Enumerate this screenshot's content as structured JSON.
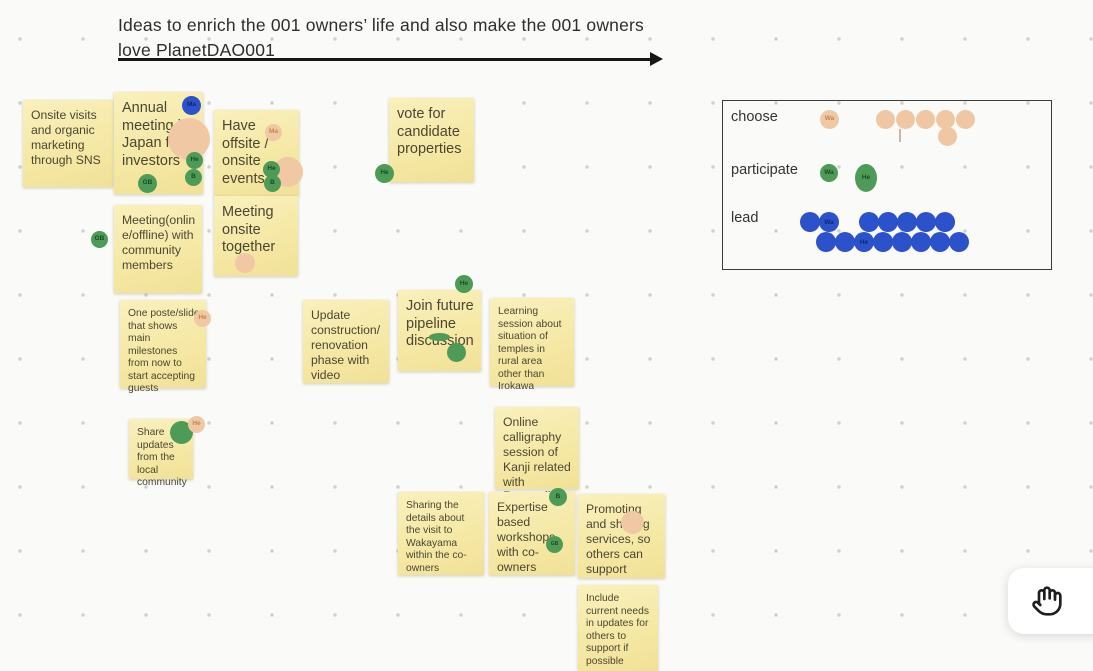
{
  "canvas": {
    "title": "Ideas to enrich the 001 owners’ life and also make the 001 owners love PlanetDAO001"
  },
  "colors": {
    "background": "#fafaf8",
    "sticky": "#f5e8a4",
    "dot_green": "#4d9b57",
    "dot_blue": "#2c52cc",
    "dot_peach": "#f0c8a3"
  },
  "notes": [
    {
      "text": "Onsite visits and organic marketing through SNS"
    },
    {
      "text": "Annual meeting in Japan for investors",
      "chips": {
        "ma": "Ma",
        "he": "He",
        "b": "B",
        "gb": "GB"
      }
    },
    {
      "text": "Have offsite / onsite events",
      "chips": {
        "ma": "Ma",
        "he": "He",
        "b": "B"
      }
    },
    {
      "text": "Meeting(online/offline) with community members",
      "chips": {
        "gb": "GB"
      }
    },
    {
      "text": "Meeting onsite together"
    },
    {
      "text": "One poste/slide that shows main milestones from now to start accepting guests",
      "chips": {
        "he": "He"
      }
    },
    {
      "text": "Share updates from the local community",
      "chips": {
        "he": "He"
      }
    },
    {
      "text": "Update construction/renovation phase with video"
    },
    {
      "text": "Join future pipeline discussion",
      "chips": {
        "he": "He"
      }
    },
    {
      "text": "vote for candidate properties",
      "chips": {
        "he": "He"
      }
    },
    {
      "text": "Learning session about situation of temples in rural area other than Irokawa"
    },
    {
      "text": "Online calligraphy session of Kanji related with Ryogonji"
    },
    {
      "text": "Sharing the details about the visit to Wakayama within the co-owners"
    },
    {
      "text": "Expertise based workshops with co-owners",
      "chips": {
        "b": "B",
        "gb": "GB"
      }
    },
    {
      "text": "Promoting and sharing services, so others can support"
    },
    {
      "text": "Include current needs in updates for others to support if possible"
    }
  ],
  "legend": {
    "rows": {
      "choose": {
        "label": "choose",
        "wa": "Wa",
        "row1": [
          "",
          "",
          "",
          "",
          ""
        ],
        "row2": [
          ""
        ]
      },
      "participate": {
        "label": "participate",
        "wa": "Wa",
        "he": "He"
      },
      "lead": {
        "label": "lead",
        "row1": [
          "",
          "Wa",
          "",
          "",
          "",
          "",
          ""
        ],
        "row2": [
          "",
          "",
          "He",
          "",
          "",
          "",
          "",
          ""
        ]
      }
    }
  },
  "toolbar": {
    "hand_tool": "hand-icon"
  }
}
